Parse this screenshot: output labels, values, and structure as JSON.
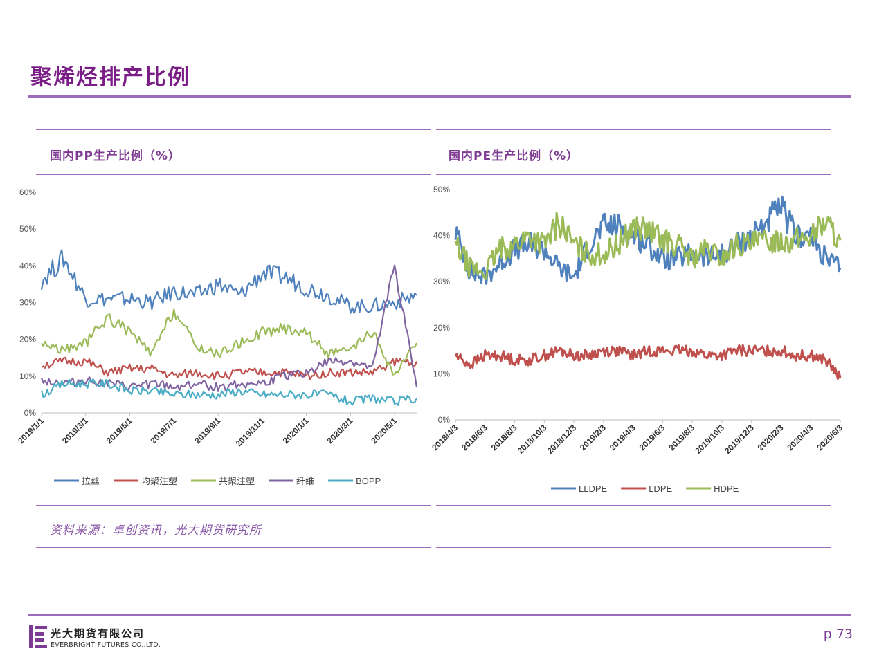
{
  "page": {
    "title": "聚烯烃排产比例",
    "source": "资料来源：卓创资讯，光大期货研究所",
    "page_number": "p 73",
    "logo_cn": "光大期货有限公司",
    "logo_en": "EVERBRIGHT FUTURES CO.,LTD."
  },
  "colors": {
    "title": "#7b1d86",
    "rule": "#9e6cbf",
    "blue": "#4f81bd",
    "red": "#c0504d",
    "green": "#9bbb59",
    "purple": "#8064a2",
    "cyan": "#4bacc6"
  },
  "chart_data": [
    {
      "type": "line",
      "title": "国内PP生产比例（%）",
      "x": [
        "2019/1/1",
        "2019/2/1",
        "2019/3/1",
        "2019/4/1",
        "2019/5/1",
        "2019/6/1",
        "2019/7/1",
        "2019/8/1",
        "2019/9/1",
        "2019/10/1",
        "2019/11/1",
        "2019/12/1",
        "2020/1/1",
        "2020/2/1",
        "2020/3/1",
        "2020/4/1",
        "2020/5/1",
        "2020/6/1"
      ],
      "x_tick_labels": [
        "2019/1/1",
        "2019/3/1",
        "2019/5/1",
        "2019/7/1",
        "2019/9/1",
        "2019/11/1",
        "2020/1/1",
        "2020/3/1",
        "2020/5/1"
      ],
      "y_tick_labels": [
        "0%",
        "10%",
        "20%",
        "30%",
        "40%",
        "50%",
        "60%"
      ],
      "ylim": [
        0,
        60
      ],
      "legend_position": "bottom",
      "series": [
        {
          "name": "拉丝",
          "color": "#4f81bd",
          "values": [
            36,
            42,
            31,
            31,
            31,
            30,
            33,
            32,
            35,
            32,
            38,
            37,
            34,
            32,
            29,
            29,
            30,
            32
          ]
        },
        {
          "name": "均聚注塑",
          "color": "#c0504d",
          "values": [
            13,
            14,
            14,
            11,
            12,
            12,
            10,
            11,
            10,
            11,
            11,
            11,
            10,
            11,
            11,
            11,
            14,
            14
          ]
        },
        {
          "name": "共聚注塑",
          "color": "#9bbb59",
          "values": [
            19,
            17,
            19,
            26,
            22,
            16,
            28,
            18,
            16,
            19,
            22,
            23,
            22,
            16,
            17,
            22,
            10,
            19
          ]
        },
        {
          "name": "纤维",
          "color": "#8064a2",
          "values": [
            9,
            8,
            9,
            8,
            7,
            8,
            7,
            8,
            7,
            8,
            8,
            10,
            11,
            14,
            14,
            12,
            40,
            7
          ]
        },
        {
          "name": "BOPP",
          "color": "#4bacc6",
          "values": [
            5,
            8,
            8,
            8,
            6,
            6,
            5,
            5,
            5,
            6,
            5,
            5,
            5,
            5,
            3,
            4,
            3,
            4
          ]
        }
      ]
    },
    {
      "type": "line",
      "title": "国内PE生产比例（%）",
      "x": [
        "2018/4/3",
        "2018/5/3",
        "2018/6/3",
        "2018/7/3",
        "2018/8/3",
        "2018/9/3",
        "2018/10/3",
        "2018/11/3",
        "2018/12/3",
        "2019/1/3",
        "2019/2/3",
        "2019/3/3",
        "2019/4/3",
        "2019/5/3",
        "2019/6/3",
        "2019/7/3",
        "2019/8/3",
        "2019/9/3",
        "2019/10/3",
        "2019/11/3",
        "2019/12/3",
        "2020/1/3",
        "2020/2/3",
        "2020/3/3",
        "2020/4/3",
        "2020/5/3",
        "2020/6/3"
      ],
      "x_tick_labels": [
        "2018/4/3",
        "2018/6/3",
        "2018/8/3",
        "2018/10/3",
        "2018/12/3",
        "2019/2/3",
        "2019/4/3",
        "2019/6/3",
        "2019/8/3",
        "2019/10/3",
        "2019/12/3",
        "2020/2/3",
        "2020/4/3",
        "2020/6/3"
      ],
      "y_tick_labels": [
        "0%",
        "10%",
        "20%",
        "30%",
        "40%",
        "50%"
      ],
      "ylim": [
        0,
        50
      ],
      "legend_position": "bottom",
      "series": [
        {
          "name": "LLDPE",
          "color": "#4f81bd",
          "values": [
            41,
            32,
            31,
            34,
            37,
            38,
            37,
            33,
            31,
            38,
            42,
            42,
            40,
            38,
            35,
            35,
            36,
            35,
            36,
            38,
            40,
            43,
            46,
            40,
            40,
            35,
            33
          ]
        },
        {
          "name": "LDPE",
          "color": "#c0504d",
          "values": [
            14,
            12,
            14,
            14,
            13,
            13,
            14,
            15,
            14,
            14,
            15,
            15,
            14,
            15,
            15,
            15,
            15,
            14,
            14,
            15,
            15,
            15,
            15,
            14,
            14,
            13,
            9
          ]
        },
        {
          "name": "HDPE",
          "color": "#9bbb59",
          "values": [
            38,
            33,
            32,
            37,
            38,
            40,
            38,
            43,
            38,
            36,
            36,
            38,
            42,
            41,
            39,
            38,
            35,
            37,
            35,
            38,
            38,
            39,
            39,
            39,
            40,
            43,
            39
          ]
        }
      ]
    }
  ]
}
